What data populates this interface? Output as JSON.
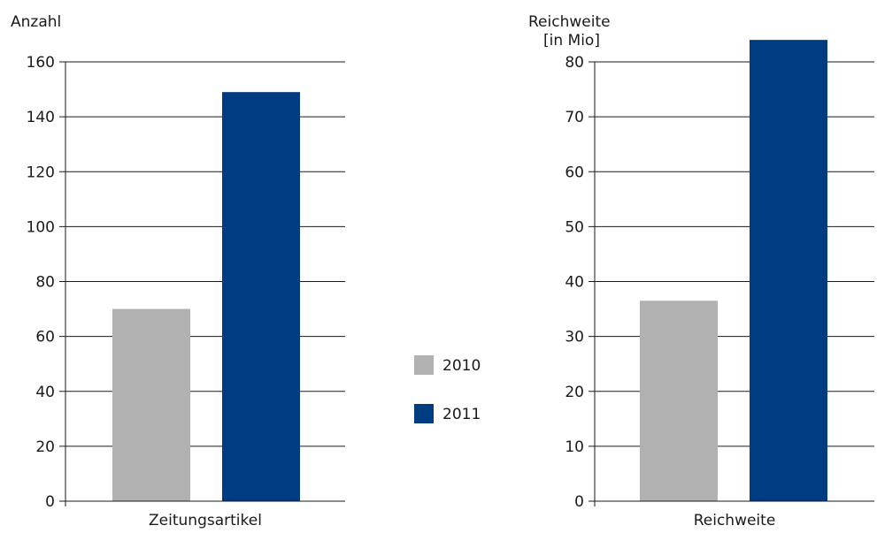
{
  "legend": [
    {
      "label": "2010",
      "color": "#b1b1b1"
    },
    {
      "label": "2011",
      "color": "#003c82"
    }
  ],
  "chart_data": [
    {
      "type": "bar",
      "ylabel": "Anzahl",
      "categories": [
        "Zeitungsartikel"
      ],
      "series": [
        {
          "name": "2010",
          "values": [
            70
          ]
        },
        {
          "name": "2011",
          "values": [
            149
          ]
        }
      ],
      "ylim": [
        0,
        160
      ],
      "yticks": [
        "0",
        "20",
        "40",
        "60",
        "80",
        "100",
        "120",
        "140",
        "160"
      ],
      "grid": true,
      "legend_position": "right"
    },
    {
      "type": "bar",
      "ylabel": [
        "Reichweite",
        "[in Mio]"
      ],
      "categories": [
        "Reichweite"
      ],
      "series": [
        {
          "name": "2010",
          "values": [
            36.5
          ]
        },
        {
          "name": "2011",
          "values": [
            84
          ]
        }
      ],
      "ylim": [
        0,
        80
      ],
      "yticks": [
        "0",
        "10",
        "20",
        "30",
        "40",
        "50",
        "60",
        "70",
        "80"
      ],
      "grid": true,
      "legend_position": "left"
    }
  ]
}
